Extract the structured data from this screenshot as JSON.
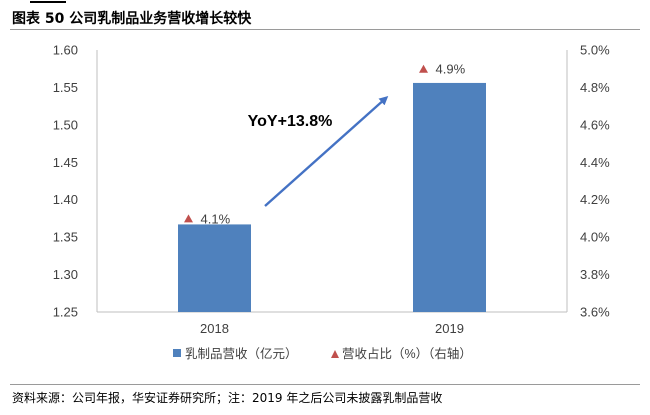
{
  "figure": {
    "title": "图表 50 公司乳制品业务营收增长较快",
    "source": "资料来源：公司年报，华安证券研究所；注：2019 年之后公司未披露乳制品营收"
  },
  "chart_data": {
    "type": "bar",
    "categories": [
      "2018",
      "2019"
    ],
    "series": [
      {
        "name": "乳制品营收（亿元）",
        "type": "bar",
        "axis": "left",
        "values": [
          1.367,
          1.556
        ],
        "color": "#4F81BD"
      },
      {
        "name": "营收占比（%）（右轴）",
        "type": "scatter",
        "marker": "triangle",
        "axis": "right",
        "values": [
          4.1,
          4.9
        ],
        "labels": [
          "4.1%",
          "4.9%"
        ],
        "color": "#C0504D"
      }
    ],
    "left_axis": {
      "min": 1.25,
      "max": 1.6,
      "step": 0.05,
      "ticks": [
        "1.25",
        "1.30",
        "1.35",
        "1.40",
        "1.45",
        "1.50",
        "1.55",
        "1.60"
      ]
    },
    "right_axis": {
      "min": 3.6,
      "max": 5.0,
      "step": 0.2,
      "ticks": [
        "3.6%",
        "3.8%",
        "4.0%",
        "4.2%",
        "4.4%",
        "4.6%",
        "4.8%",
        "5.0%"
      ]
    },
    "annotation": {
      "text": "YoY+13.8%",
      "arrow": true,
      "color": "#4472C4"
    },
    "grid": false,
    "legend_position": "bottom"
  }
}
